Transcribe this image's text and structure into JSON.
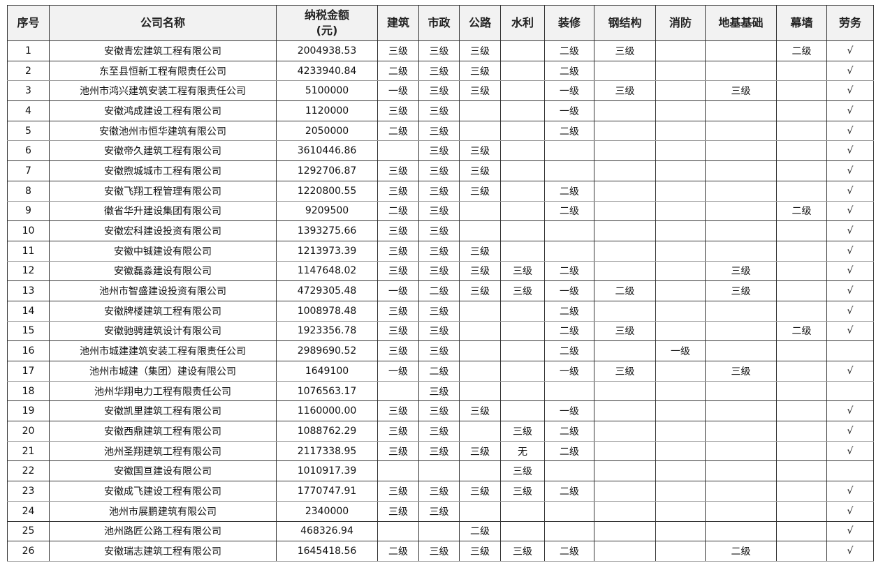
{
  "headers": [
    "序号",
    "公司名称",
    "纳税金额\n(元)",
    "建筑",
    "市政",
    "公路",
    "水利",
    "装修",
    "钢结构",
    "消防",
    "地基基础",
    "幕墙",
    "劳务"
  ],
  "rows": [
    [
      "1",
      "安徽青宏建筑工程有限公司",
      "2004938.53",
      "三级",
      "三级",
      "三级",
      "",
      "二级",
      "三级",
      "",
      "",
      "二级",
      "√"
    ],
    [
      "2",
      "东至县恒新工程有限责任公司",
      "4233940.84",
      "二级",
      "三级",
      "三级",
      "",
      "二级",
      "",
      "",
      "",
      "",
      "√"
    ],
    [
      "3",
      "池州市鸿兴建筑安装工程有限责任公司",
      "5100000",
      "一级",
      "三级",
      "三级",
      "",
      "一级",
      "三级",
      "",
      "三级",
      "",
      "√"
    ],
    [
      "4",
      "安徽鸿成建设工程有限公司",
      "1120000",
      "三级",
      "三级",
      "",
      "",
      "一级",
      "",
      "",
      "",
      "",
      "√"
    ],
    [
      "5",
      "安徽池州市恒华建筑有限公司",
      "2050000",
      "二级",
      "三级",
      "",
      "",
      "二级",
      "",
      "",
      "",
      "",
      "√"
    ],
    [
      "6",
      "安徽帝久建筑工程有限公司",
      "3610446.86",
      "",
      "三级",
      "三级",
      "",
      "",
      "",
      "",
      "",
      "",
      "√"
    ],
    [
      "7",
      "安徽煦城城市工程有限公司",
      "1292706.87",
      "三级",
      "三级",
      "三级",
      "",
      "",
      "",
      "",
      "",
      "",
      "√"
    ],
    [
      "8",
      "安徽飞翔工程管理有限公司",
      "1220800.55",
      "三级",
      "三级",
      "三级",
      "",
      "二级",
      "",
      "",
      "",
      "",
      "√"
    ],
    [
      "9",
      "徽省华升建设集团有限公司",
      "9209500",
      "二级",
      "三级",
      "",
      "",
      "二级",
      "",
      "",
      "",
      "二级",
      "√"
    ],
    [
      "10",
      "安徽宏科建设投资有限公司",
      "1393275.66",
      "三级",
      "三级",
      "",
      "",
      "",
      "",
      "",
      "",
      "",
      "√"
    ],
    [
      "11",
      "安徽中铖建设有限公司",
      "1213973.39",
      "三级",
      "三级",
      "三级",
      "",
      "",
      "",
      "",
      "",
      "",
      "√"
    ],
    [
      "12",
      "安徽磊淼建设有限公司",
      "1147648.02",
      "三级",
      "三级",
      "三级",
      "三级",
      "二级",
      "",
      "",
      "三级",
      "",
      "√"
    ],
    [
      "13",
      "池州市智盛建设投资有限公司",
      "4729305.48",
      "一级",
      "二级",
      "三级",
      "三级",
      "一级",
      "二级",
      "",
      "三级",
      "",
      "√"
    ],
    [
      "14",
      "安徽牌楼建筑工程有限公司",
      "1008978.48",
      "三级",
      "三级",
      "",
      "",
      "二级",
      "",
      "",
      "",
      "",
      "√"
    ],
    [
      "15",
      "安徽驰骋建筑设计有限公司",
      "1923356.78",
      "三级",
      "三级",
      "",
      "",
      "二级",
      "三级",
      "",
      "",
      "二级",
      "√"
    ],
    [
      "16",
      "池州市城建建筑安装工程有限责任公司",
      "2989690.52",
      "三级",
      "三级",
      "",
      "",
      "二级",
      "",
      "一级",
      "",
      "",
      ""
    ],
    [
      "17",
      "池州市城建（集团）建设有限公司",
      "1649100",
      "一级",
      "二级",
      "",
      "",
      "一级",
      "三级",
      "",
      "三级",
      "",
      "√"
    ],
    [
      "18",
      "池州华翔电力工程有限责任公司",
      "1076563.17",
      "",
      "三级",
      "",
      "",
      "",
      "",
      "",
      "",
      "",
      ""
    ],
    [
      "19",
      "安徽凯里建筑工程有限公司",
      "1160000.00",
      "三级",
      "三级",
      "三级",
      "",
      "一级",
      "",
      "",
      "",
      "",
      "√"
    ],
    [
      "20",
      "安徽西鼎建筑工程有限公司",
      "1088762.29",
      "三级",
      "三级",
      "",
      "三级",
      "二级",
      "",
      "",
      "",
      "",
      "√"
    ],
    [
      "21",
      "池州圣翔建筑工程有限公司",
      "2117338.95",
      "三级",
      "三级",
      "三级",
      "无",
      "二级",
      "",
      "",
      "",
      "",
      "√"
    ],
    [
      "22",
      "安徽国亘建设有限公司",
      "1010917.39",
      "",
      "",
      "",
      "三级",
      "",
      "",
      "",
      "",
      "",
      ""
    ],
    [
      "23",
      "安徽成飞建设工程有限公司",
      "1770747.91",
      "三级",
      "三级",
      "三级",
      "三级",
      "二级",
      "",
      "",
      "",
      "",
      "√"
    ],
    [
      "24",
      "池州市展鹏建筑有限公司",
      "2340000",
      "三级",
      "三级",
      "",
      "",
      "",
      "",
      "",
      "",
      "",
      "√"
    ],
    [
      "25",
      "池州路匠公路工程有限公司",
      "468326.94",
      "",
      "",
      "二级",
      "",
      "",
      "",
      "",
      "",
      "",
      "√"
    ],
    [
      "26",
      "安徽瑞志建筑工程有限公司",
      "1645418.56",
      "二级",
      "三级",
      "三级",
      "三级",
      "二级",
      "",
      "",
      "二级",
      "",
      "√"
    ]
  ]
}
